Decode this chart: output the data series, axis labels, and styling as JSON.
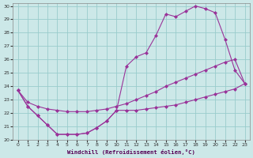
{
  "xlabel": "Windchill (Refroidissement éolien,°C)",
  "background_color": "#cce8e8",
  "grid_color": "#99cccc",
  "line_color": "#993399",
  "xlim": [
    -0.5,
    23.5
  ],
  "ylim": [
    20,
    30.2
  ],
  "yticks": [
    20,
    21,
    22,
    23,
    24,
    25,
    26,
    27,
    28,
    29,
    30
  ],
  "xticks": [
    0,
    1,
    2,
    3,
    4,
    5,
    6,
    7,
    8,
    9,
    10,
    11,
    12,
    13,
    14,
    15,
    16,
    17,
    18,
    19,
    20,
    21,
    22,
    23
  ],
  "curve_bottom_x": [
    0,
    1,
    2,
    3,
    4,
    5,
    6,
    7,
    8,
    9,
    10,
    11,
    12,
    13,
    14,
    15,
    16,
    17,
    18,
    19,
    20,
    21,
    22,
    23
  ],
  "curve_bottom_y": [
    23.7,
    22.5,
    21.8,
    21.1,
    20.4,
    20.4,
    20.4,
    20.5,
    20.9,
    21.4,
    22.2,
    22.2,
    22.2,
    22.3,
    22.4,
    22.5,
    22.6,
    22.8,
    23.0,
    23.2,
    23.4,
    23.6,
    23.8,
    24.2
  ],
  "curve_mid_x": [
    0,
    1,
    2,
    3,
    4,
    5,
    6,
    7,
    8,
    9,
    10,
    11,
    12,
    13,
    14,
    15,
    16,
    17,
    18,
    19,
    20,
    21,
    22,
    23
  ],
  "curve_mid_y": [
    23.7,
    22.8,
    22.5,
    22.3,
    22.2,
    22.1,
    22.1,
    22.1,
    22.2,
    22.3,
    22.5,
    22.7,
    23.0,
    23.3,
    23.6,
    24.0,
    24.3,
    24.6,
    24.9,
    25.2,
    25.5,
    25.8,
    26.0,
    24.2
  ],
  "curve_top_x": [
    0,
    1,
    2,
    3,
    4,
    5,
    6,
    7,
    8,
    9,
    10,
    11,
    12,
    13,
    14,
    15,
    16,
    17,
    18,
    19,
    20,
    21,
    22,
    23
  ],
  "curve_top_y": [
    23.7,
    22.5,
    21.8,
    21.1,
    20.4,
    20.4,
    20.4,
    20.5,
    20.9,
    21.4,
    22.2,
    25.5,
    26.2,
    26.5,
    27.8,
    29.4,
    29.2,
    29.6,
    30.0,
    29.8,
    29.5,
    27.5,
    25.2,
    24.2
  ]
}
